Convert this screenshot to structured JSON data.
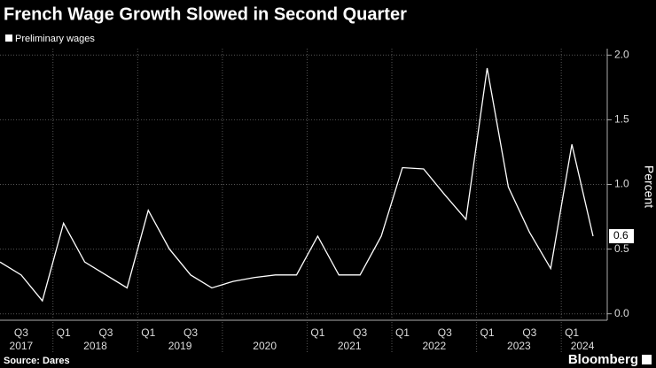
{
  "chart_data": {
    "type": "line",
    "title": "French Wage Growth Slowed in Second Quarter",
    "categories": [
      null,
      "Q3",
      null,
      "Q1",
      null,
      "Q3",
      null,
      "Q1",
      null,
      "Q3",
      null,
      null,
      null,
      null,
      null,
      "Q1",
      null,
      "Q3",
      null,
      "Q1",
      null,
      "Q3",
      null,
      "Q1",
      null,
      "Q3",
      null,
      "Q1",
      null
    ],
    "years": [
      "2017",
      "2018",
      "2019",
      "2020",
      "2021",
      "2022",
      "2023",
      "2024"
    ],
    "series": [
      {
        "name": "Preliminary wages",
        "color": "#ffffff",
        "values": [
          0.4,
          0.3,
          0.1,
          0.7,
          0.4,
          0.3,
          0.2,
          0.8,
          0.5,
          0.3,
          0.2,
          0.25,
          0.28,
          0.3,
          0.3,
          0.6,
          0.3,
          0.3,
          0.6,
          1.13,
          1.12,
          0.92,
          0.73,
          1.9,
          0.98,
          0.63,
          0.35,
          1.31,
          0.6
        ]
      }
    ],
    "ylim": [
      -0.05,
      2.05
    ],
    "yticks": [
      {
        "value": 0,
        "label": "0.0"
      },
      {
        "value": 0.5,
        "label": "0.5"
      },
      {
        "value": 1,
        "label": "1.0"
      },
      {
        "value": 1.5,
        "label": "1.5"
      },
      {
        "value": 2,
        "label": "2.0"
      }
    ],
    "y_label": "Percent",
    "grid": true,
    "source": "Source: Dares",
    "brand": "Bloomberg"
  }
}
